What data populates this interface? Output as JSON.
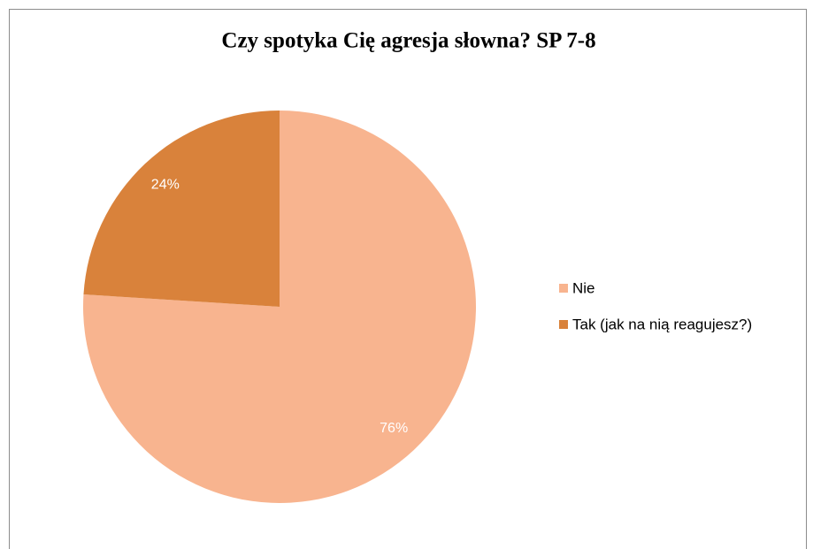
{
  "chart_data": {
    "type": "pie",
    "title": "Czy spotyka Cię agresja słowna? SP 7-8",
    "categories": [
      "Nie",
      "Tak (jak na nią reagujesz?)"
    ],
    "values": [
      76,
      24
    ],
    "value_labels": [
      "76%",
      "24%"
    ],
    "colors": [
      "#F8B48F",
      "#D9823B"
    ],
    "legend": "right"
  }
}
